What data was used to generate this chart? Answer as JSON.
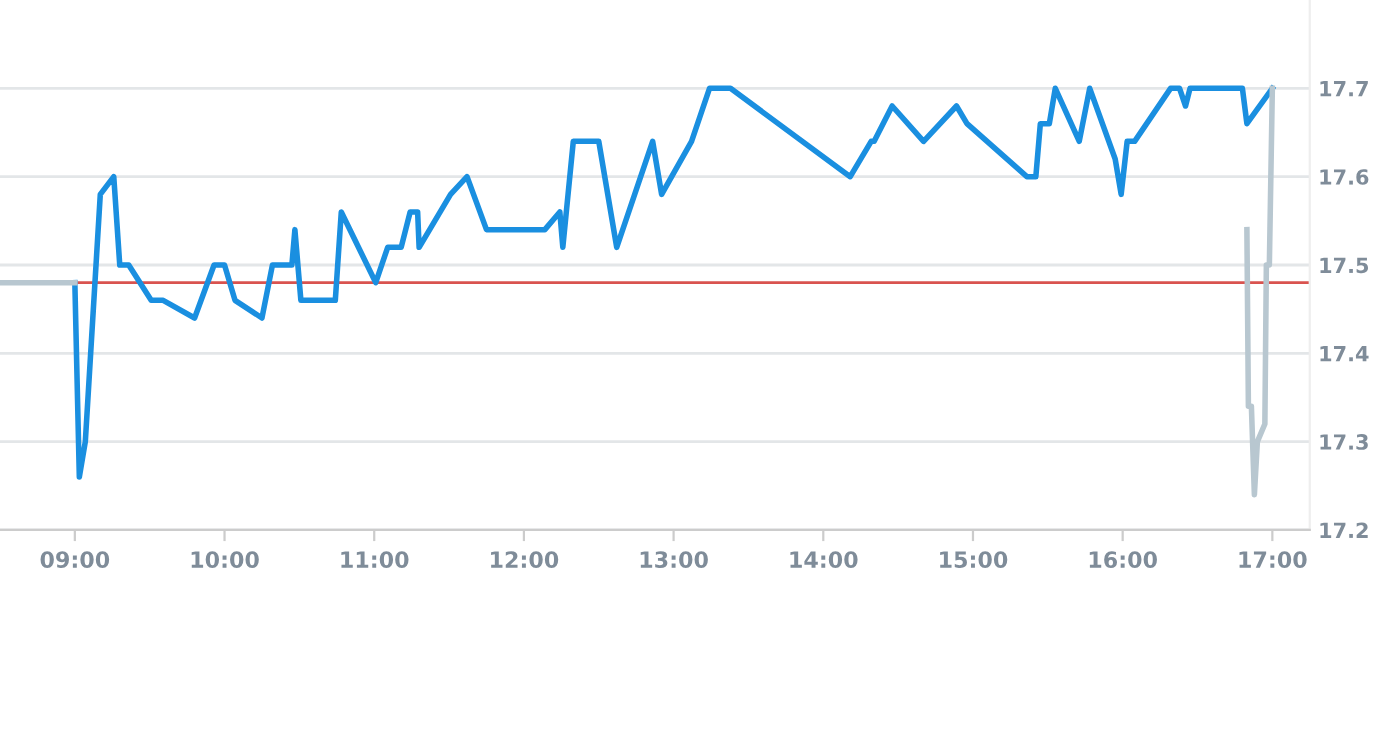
{
  "chart_data": {
    "type": "line",
    "series": [
      {
        "color": "#1a8fe0",
        "x": [
          9.0,
          9.03,
          9.07,
          9.17,
          9.26,
          9.3,
          9.36,
          9.51,
          9.59,
          9.8,
          9.93,
          10.0,
          10.07,
          10.25,
          10.32,
          10.45,
          10.47,
          10.51,
          10.74,
          10.78,
          11.01,
          11.09,
          11.18,
          11.24,
          11.29,
          11.3,
          11.51,
          11.62,
          11.75,
          12.14,
          12.24,
          12.26,
          12.33,
          12.5,
          12.62,
          12.86,
          12.92,
          13.12,
          13.24,
          13.38,
          14.18,
          14.32,
          14.34,
          14.46,
          14.67,
          14.89,
          14.96,
          15.36,
          15.42,
          15.45,
          15.51,
          15.55,
          15.71,
          15.78,
          15.95,
          15.99,
          16.03,
          16.08,
          16.32,
          16.38,
          16.42,
          16.45,
          16.8,
          16.83,
          17.0
        ],
        "values": [
          17.48,
          17.26,
          17.3,
          17.58,
          17.6,
          17.5,
          17.5,
          17.46,
          17.46,
          17.44,
          17.5,
          17.5,
          17.46,
          17.44,
          17.5,
          17.5,
          17.54,
          17.46,
          17.46,
          17.56,
          17.48,
          17.52,
          17.52,
          17.56,
          17.56,
          17.52,
          17.58,
          17.6,
          17.54,
          17.54,
          17.56,
          17.52,
          17.64,
          17.64,
          17.52,
          17.64,
          17.58,
          17.64,
          17.7,
          17.7,
          17.6,
          17.64,
          17.64,
          17.68,
          17.64,
          17.68,
          17.66,
          17.6,
          17.6,
          17.66,
          17.66,
          17.7,
          17.64,
          17.7,
          17.62,
          17.58,
          17.64,
          17.64,
          17.7,
          17.7,
          17.68,
          17.7,
          17.7,
          17.66,
          17.7
        ]
      },
      {
        "color": "#b8c7d0",
        "x": [
          8.5,
          9.0
        ],
        "values": [
          17.48,
          17.48
        ]
      },
      {
        "color": "#b8c7d0",
        "x": [
          16.83,
          16.84,
          16.86,
          16.88,
          16.9,
          16.95,
          16.96,
          16.98,
          17.0
        ],
        "values": [
          17.54,
          17.34,
          17.34,
          17.24,
          17.3,
          17.32,
          17.5,
          17.5,
          17.7
        ]
      }
    ],
    "xlim": [
      8.5,
      17.25
    ],
    "xticks": [
      {
        "value": 9,
        "label": "09:00"
      },
      {
        "value": 10,
        "label": "10:00"
      },
      {
        "value": 11,
        "label": "11:00"
      },
      {
        "value": 12,
        "label": "12:00"
      },
      {
        "value": 13,
        "label": "13:00"
      },
      {
        "value": 14,
        "label": "14:00"
      },
      {
        "value": 15,
        "label": "15:00"
      },
      {
        "value": 16,
        "label": "16:00"
      },
      {
        "value": 17,
        "label": "17:00"
      }
    ],
    "ylim": [
      17.2,
      17.8
    ],
    "yticks": [
      17.2,
      17.3,
      17.4,
      17.5,
      17.6,
      17.7
    ],
    "ref_lines": [
      {
        "axis": "y",
        "value": 17.48,
        "color": "#d9534f"
      }
    ],
    "grid": "y",
    "line_style": "solid",
    "marker": "none"
  }
}
